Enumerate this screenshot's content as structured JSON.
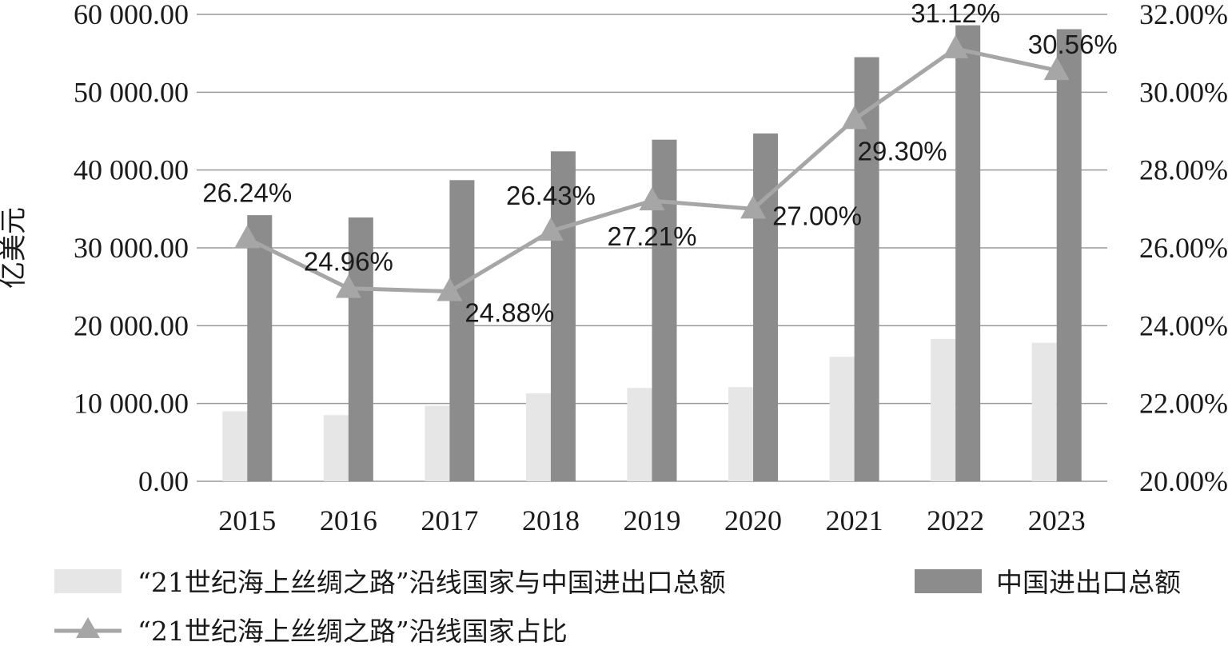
{
  "chart_data": {
    "type": "bar",
    "categories": [
      "2015",
      "2016",
      "2017",
      "2018",
      "2019",
      "2020",
      "2021",
      "2022",
      "2023"
    ],
    "series": [
      {
        "name": "“21世纪海上丝绸之路”沿线国家与中国进出口总额",
        "type": "bar",
        "axis": "left",
        "color": "#e6e6e6",
        "values": [
          9000,
          8500,
          9700,
          11300,
          12000,
          12100,
          16000,
          18300,
          17800
        ]
      },
      {
        "name": "中国进出口总额",
        "type": "bar",
        "axis": "left",
        "color": "#8c8c8c",
        "values": [
          34200,
          33900,
          38700,
          42400,
          43900,
          44700,
          54500,
          58600,
          58100
        ]
      },
      {
        "name": "“21世纪海上丝绸之路”沿线国家占比",
        "type": "line",
        "axis": "right",
        "marker": "triangle",
        "color": "#a6a6a6",
        "values": [
          26.24,
          24.96,
          24.88,
          26.43,
          27.21,
          27.0,
          29.3,
          31.12,
          30.56
        ],
        "labels": [
          "26.24%",
          "24.96%",
          "24.88%",
          "26.43%",
          "27.21%",
          "27.00%",
          "29.30%",
          "31.12%",
          "30.56%"
        ]
      }
    ],
    "ylabel": "亿美元",
    "ylim": [
      0,
      60000
    ],
    "yticks": [
      "0.00",
      "10 000.00",
      "20 000.00",
      "30 000.00",
      "40 000.00",
      "50 000.00",
      "60 000.00"
    ],
    "y2lim": [
      20,
      32
    ],
    "y2ticks": [
      "20.00%",
      "22.00%",
      "24.00%",
      "26.00%",
      "28.00%",
      "30.00%",
      "32.00%"
    ],
    "grid": true,
    "legend_position": "bottom"
  }
}
